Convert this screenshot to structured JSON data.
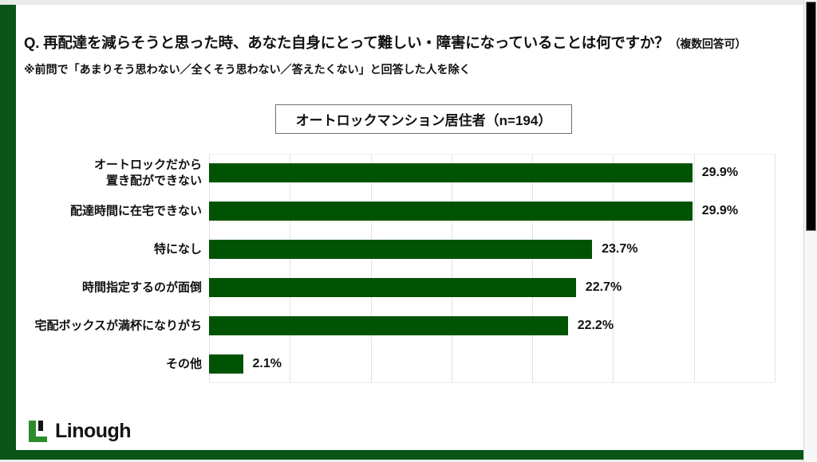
{
  "header": {
    "title_q": "Q. 再配達を減らそうと思った時、あなた自身にとって難しい・障害になっていることは何ですか？",
    "title_note": "（複数回答可）",
    "subtitle": "※前問で「あまりそう思わない／全くそう思わない／答えたくない」と回答した人を除く"
  },
  "group_label": "オートロックマンション居住者（n=194）",
  "chart_data": {
    "type": "bar",
    "orientation": "horizontal",
    "title": "オートロックマンション居住者（n=194）",
    "categories": [
      "オートロックだから\n置き配ができない",
      "配達時間に在宅できない",
      "特になし",
      "時間指定するのが面倒",
      "宅配ボックスが満杯になりがち",
      "その他"
    ],
    "values": [
      29.9,
      29.9,
      23.7,
      22.7,
      22.2,
      2.1
    ],
    "value_labels": [
      "29.9%",
      "29.9%",
      "23.7%",
      "22.7%",
      "22.2%",
      "2.1%"
    ],
    "xlim": [
      0,
      35
    ],
    "gridline_step": 5,
    "grid": true,
    "legend": false,
    "bar_color": "#005302",
    "grid_color": "#e3e3e3"
  },
  "colors": {
    "frame_green": "#0a5417",
    "logo_green": "#2c8c2c",
    "logo_black": "#141414",
    "page_bg": "#e9ece9"
  },
  "footer": {
    "logo_text": "Linough"
  }
}
